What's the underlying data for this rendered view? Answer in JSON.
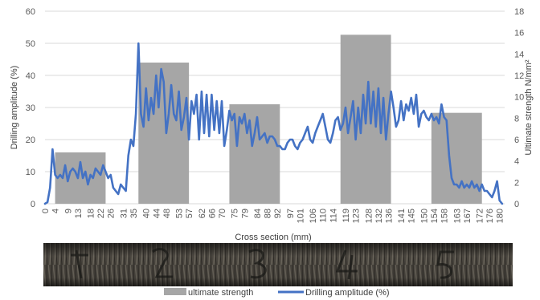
{
  "chart_data": {
    "type": "bar",
    "xlabel": "Cross section (mm)",
    "ylabel_left": "Drilling amplitude (%)",
    "ylabel_right": "Ultimate strength N/mm²",
    "ylim_left": [
      0,
      60
    ],
    "ylim_right": [
      0,
      18
    ],
    "xlim": [
      0,
      182
    ],
    "left_ticks": [
      "0",
      "10",
      "20",
      "30",
      "40",
      "50",
      "60"
    ],
    "right_ticks": [
      "0",
      "2",
      "4",
      "6",
      "8",
      "10",
      "12",
      "14",
      "16",
      "18"
    ],
    "x_ticks": [
      "0",
      "4",
      "9",
      "13",
      "18",
      "22",
      "26",
      "31",
      "35",
      "40",
      "44",
      "48",
      "53",
      "57",
      "62",
      "66",
      "70",
      "75",
      "79",
      "84",
      "88",
      "92",
      "97",
      "101",
      "106",
      "110",
      "114",
      "119",
      "123",
      "128",
      "132",
      "136",
      "141",
      "145",
      "150",
      "154",
      "158",
      "163",
      "167",
      "172",
      "176",
      "180"
    ],
    "grid": "horizontal",
    "legend_position": "bottom",
    "series": [
      {
        "name": "ultimate strength",
        "type": "bar",
        "axis": "right",
        "color": "#a6a6a6",
        "bars": [
          {
            "x_start": 4,
            "x_end": 24,
            "value": 4.8
          },
          {
            "x_start": 37,
            "x_end": 57,
            "value": 13.2
          },
          {
            "x_start": 73,
            "x_end": 93,
            "value": 9.3
          },
          {
            "x_start": 117,
            "x_end": 137,
            "value": 15.8
          },
          {
            "x_start": 153,
            "x_end": 173,
            "value": 8.5
          }
        ]
      },
      {
        "name": "Drilling amplitude (%)",
        "type": "line",
        "axis": "left",
        "color": "#4472c4",
        "x": [
          0,
          1,
          2,
          3,
          4,
          5,
          6,
          7,
          8,
          9,
          10,
          11,
          12,
          13,
          14,
          15,
          16,
          17,
          18,
          19,
          20,
          21,
          22,
          23,
          24,
          25,
          26,
          27,
          28,
          29,
          30,
          31,
          32,
          33,
          34,
          35,
          36,
          37,
          38,
          39,
          40,
          41,
          42,
          43,
          44,
          45,
          46,
          47,
          48,
          49,
          50,
          51,
          52,
          53,
          54,
          55,
          56,
          57,
          58,
          59,
          60,
          61,
          62,
          63,
          64,
          65,
          66,
          67,
          68,
          69,
          70,
          71,
          72,
          73,
          74,
          75,
          76,
          77,
          78,
          79,
          80,
          81,
          82,
          83,
          84,
          85,
          86,
          87,
          88,
          89,
          90,
          91,
          92,
          93,
          94,
          95,
          96,
          97,
          98,
          99,
          100,
          101,
          102,
          103,
          104,
          105,
          106,
          107,
          108,
          109,
          110,
          111,
          112,
          113,
          114,
          115,
          116,
          117,
          118,
          119,
          120,
          121,
          122,
          123,
          124,
          125,
          126,
          127,
          128,
          129,
          130,
          131,
          132,
          133,
          134,
          135,
          136,
          137,
          138,
          139,
          140,
          141,
          142,
          143,
          144,
          145,
          146,
          147,
          148,
          149,
          150,
          151,
          152,
          153,
          154,
          155,
          156,
          157,
          158,
          159,
          160,
          161,
          162,
          163,
          164,
          165,
          166,
          167,
          168,
          169,
          170,
          171,
          172,
          173,
          174,
          175,
          176,
          177,
          178,
          179,
          180,
          181
        ],
        "y": [
          0,
          0.5,
          5,
          17,
          9,
          8,
          9,
          8,
          12,
          7,
          10,
          11,
          10,
          8,
          13,
          8,
          10,
          6,
          9,
          8,
          11,
          10,
          9,
          12,
          10,
          8,
          9,
          5,
          4,
          3,
          6,
          5,
          4,
          15,
          20,
          18,
          28,
          50,
          28,
          24,
          36,
          26,
          33,
          28,
          40,
          30,
          42,
          38,
          22,
          28,
          37,
          28,
          26,
          35,
          23,
          27,
          33,
          20,
          32,
          28,
          34,
          20,
          35,
          22,
          34,
          21,
          34,
          23,
          32,
          22,
          32,
          18,
          23,
          29,
          26,
          28,
          18,
          27,
          25,
          28,
          22,
          26,
          18,
          22,
          27,
          20,
          21,
          22,
          19,
          21,
          21,
          20,
          18,
          18,
          17,
          17,
          19,
          20,
          20,
          18,
          17,
          19,
          20,
          22,
          24,
          20,
          19,
          22,
          24,
          26,
          28,
          24,
          20,
          19,
          22,
          26,
          27,
          23,
          25,
          30,
          22,
          27,
          32,
          20,
          30,
          22,
          34,
          25,
          38,
          25,
          35,
          24,
          36,
          22,
          33,
          20,
          28,
          35,
          30,
          24,
          26,
          32,
          26,
          31,
          29,
          33,
          28,
          34,
          24,
          28,
          29,
          27,
          26,
          28,
          26,
          27,
          25,
          31,
          27,
          26,
          15,
          8,
          6,
          6,
          5,
          7,
          5,
          6,
          5,
          7,
          5,
          6,
          4,
          6,
          4,
          4,
          3,
          2,
          4,
          7,
          1,
          0
        ]
      }
    ]
  }
}
